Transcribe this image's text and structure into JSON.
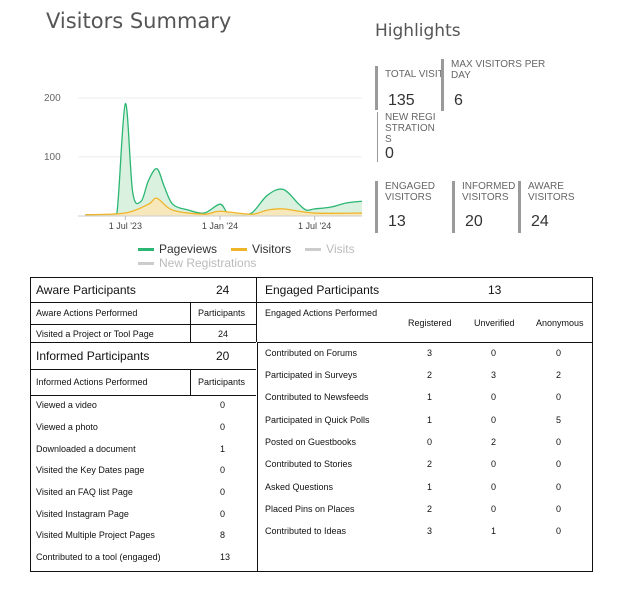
{
  "visitors_summary": {
    "title": "Visitors Summary",
    "chart_data": {
      "type": "area",
      "y_ticks": [
        "200",
        "100"
      ],
      "x_ticks": [
        "1 Jul '23",
        "1 Jan '24",
        "1 Jul '24"
      ],
      "ylim": [
        0,
        220
      ],
      "x_range_months": [
        "2023-04",
        "2024-10"
      ],
      "series": [
        {
          "name": "Pageviews",
          "color": "#2bb673",
          "fill": "#d6efdd",
          "x": [
            "2023-04-15",
            "2023-06-01",
            "2023-06-15",
            "2023-07-01",
            "2023-07-15",
            "2023-08-01",
            "2023-08-15",
            "2023-09-01",
            "2023-09-15",
            "2023-10-01",
            "2023-11-01",
            "2023-12-01",
            "2024-01-01",
            "2024-01-15",
            "2024-02-01",
            "2024-03-01",
            "2024-04-01",
            "2024-05-01",
            "2024-06-01",
            "2024-06-15",
            "2024-07-01",
            "2024-08-01",
            "2024-09-01",
            "2024-10-01"
          ],
          "values": [
            2,
            2,
            5,
            190,
            40,
            25,
            60,
            80,
            50,
            20,
            10,
            5,
            20,
            5,
            2,
            5,
            35,
            45,
            20,
            10,
            12,
            15,
            22,
            25
          ]
        },
        {
          "name": "Visitors",
          "color": "#f0b429",
          "fill": "#f9e7b8",
          "x": [
            "2023-04-15",
            "2023-07-01",
            "2023-08-15",
            "2023-09-01",
            "2023-10-01",
            "2023-12-01",
            "2024-01-01",
            "2024-03-01",
            "2024-04-01",
            "2024-05-01",
            "2024-07-01",
            "2024-10-01"
          ],
          "values": [
            2,
            5,
            20,
            30,
            10,
            3,
            8,
            3,
            10,
            12,
            5,
            5
          ]
        },
        {
          "name": "Visits",
          "color": "#d0d0d0",
          "x": [],
          "values": []
        },
        {
          "name": "New Registrations",
          "color": "#d0d0d0",
          "x": [],
          "values": []
        }
      ]
    },
    "legend": [
      {
        "label": "Pageviews",
        "color": "#2bb673",
        "faded": false
      },
      {
        "label": "Visitors",
        "color": "#f0b429",
        "faded": false
      },
      {
        "label": "Visits",
        "color": "#cccccc",
        "faded": true
      },
      {
        "label": "New Registrations",
        "color": "#cccccc",
        "faded": true
      }
    ]
  },
  "highlights": {
    "title": "Highlights",
    "total_visits": {
      "label": "TOTAL VISITS",
      "value": "135"
    },
    "max_visitors": {
      "label": "MAX VISITORS PER DAY",
      "value": "6"
    },
    "new_registrations": {
      "label": "NEW REGISTRATIONS",
      "value": "0"
    },
    "engaged": {
      "label": "ENGAGED VISITORS",
      "value": "13"
    },
    "informed": {
      "label": "INFORMED VISITORS",
      "value": "20"
    },
    "aware": {
      "label": "AWARE VISITORS",
      "value": "24"
    }
  },
  "aware": {
    "title": "Aware Participants",
    "count": "24",
    "col1": "Aware Actions Performed",
    "col2": "Participants",
    "rows": [
      {
        "action": "Visited a Project or Tool Page",
        "value": "24"
      }
    ]
  },
  "informed": {
    "title": "Informed Participants",
    "count": "20",
    "col1": "Informed Actions Performed",
    "col2": "Participants",
    "rows": [
      {
        "action": "Viewed a video",
        "value": "0"
      },
      {
        "action": "Viewed a photo",
        "value": "0"
      },
      {
        "action": "Downloaded a document",
        "value": "1"
      },
      {
        "action": "Visited the Key Dates page",
        "value": "0"
      },
      {
        "action": "Visited an FAQ list Page",
        "value": "0"
      },
      {
        "action": "Visited Instagram Page",
        "value": "0"
      },
      {
        "action": "Visited Multiple Project Pages",
        "value": "8"
      },
      {
        "action": "Contributed to a tool (engaged)",
        "value": "13"
      }
    ]
  },
  "engaged": {
    "title": "Engaged Participants",
    "count": "13",
    "col1": "Engaged Actions Performed",
    "col2": "Registered",
    "col3": "Unverified",
    "col4": "Anonymous",
    "rows": [
      {
        "action": "Contributed on Forums",
        "registered": "3",
        "unverified": "0",
        "anonymous": "0"
      },
      {
        "action": "Participated in Surveys",
        "registered": "2",
        "unverified": "3",
        "anonymous": "2"
      },
      {
        "action": "Contributed to Newsfeeds",
        "registered": "1",
        "unverified": "0",
        "anonymous": "0"
      },
      {
        "action": "Participated in Quick Polls",
        "registered": "1",
        "unverified": "0",
        "anonymous": "5"
      },
      {
        "action": "Posted on Guestbooks",
        "registered": "0",
        "unverified": "2",
        "anonymous": "0"
      },
      {
        "action": "Contributed to Stories",
        "registered": "2",
        "unverified": "0",
        "anonymous": "0"
      },
      {
        "action": "Asked Questions",
        "registered": "1",
        "unverified": "0",
        "anonymous": "0"
      },
      {
        "action": "Placed Pins on Places",
        "registered": "2",
        "unverified": "0",
        "anonymous": "0"
      },
      {
        "action": "Contributed to Ideas",
        "registered": "3",
        "unverified": "1",
        "anonymous": "0"
      }
    ]
  }
}
